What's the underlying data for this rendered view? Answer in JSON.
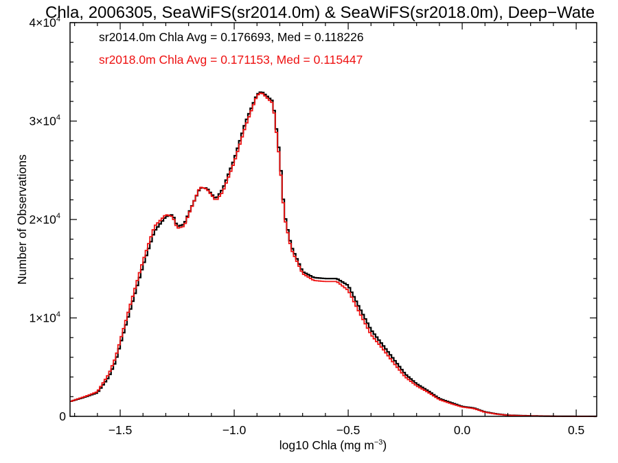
{
  "chart_data": {
    "type": "line",
    "title": "Chla, 2006305, SeaWiFS(sr2014.0m) & SeaWiFS(sr2018.0m), Deep−Wate",
    "xlabel": "log10 Chla (mg m",
    "xlabel_sup": "−3",
    "xlabel_close": ")",
    "ylabel": "Number of Observations",
    "xlim": [
      -1.72,
      0.59
    ],
    "ylim": [
      0,
      40000
    ],
    "x_ticks": [
      {
        "value": -1.5,
        "label": "−1.5"
      },
      {
        "value": -1.0,
        "label": "−1.0"
      },
      {
        "value": -0.5,
        "label": "−0.5"
      },
      {
        "value": 0.0,
        "label": "0.0"
      },
      {
        "value": 0.5,
        "label": "0.5"
      }
    ],
    "y_ticks": [
      {
        "value": 0,
        "mant": "0",
        "exp": ""
      },
      {
        "value": 10000,
        "mant": "1×10",
        "exp": "4"
      },
      {
        "value": 20000,
        "mant": "2×10",
        "exp": "4"
      },
      {
        "value": 30000,
        "mant": "3×10",
        "exp": "4"
      },
      {
        "value": 40000,
        "mant": "4×10",
        "exp": "4"
      }
    ],
    "step": "histogram",
    "legend": [
      {
        "text": "sr2014.0m Chla Avg = 0.176693, Med = 0.118226",
        "color": "#000000"
      },
      {
        "text": "sr2018.0m Chla Avg = 0.171153, Med = 0.115447",
        "color": "#ee1111"
      }
    ],
    "legend_position": "top-left",
    "series": [
      {
        "color": "#000000",
        "x": [
          -1.72,
          -1.65,
          -1.6,
          -1.55,
          -1.52,
          -1.5,
          -1.45,
          -1.4,
          -1.35,
          -1.3,
          -1.27,
          -1.25,
          -1.22,
          -1.2,
          -1.15,
          -1.12,
          -1.1,
          -1.08,
          -1.05,
          -1.0,
          -0.95,
          -0.9,
          -0.88,
          -0.85,
          -0.83,
          -0.8,
          -0.78,
          -0.75,
          -0.7,
          -0.65,
          -0.6,
          -0.55,
          -0.5,
          -0.45,
          -0.4,
          -0.35,
          -0.3,
          -0.25,
          -0.2,
          -0.15,
          -0.1,
          -0.05,
          0.0,
          0.05,
          0.1,
          0.15,
          0.2,
          0.3,
          0.4,
          0.5,
          0.59
        ],
        "y": [
          1500,
          2000,
          2400,
          4000,
          5600,
          7300,
          11300,
          15300,
          18800,
          20300,
          20500,
          19300,
          19500,
          20600,
          23200,
          23200,
          22600,
          22100,
          23100,
          26100,
          29900,
          32700,
          33000,
          32400,
          32000,
          26400,
          20600,
          17300,
          14700,
          14100,
          14000,
          14000,
          13300,
          11000,
          8800,
          7300,
          5800,
          4300,
          3300,
          2600,
          1800,
          1400,
          1000,
          850,
          450,
          250,
          120,
          50,
          15,
          5,
          2
        ]
      },
      {
        "color": "#ee1111",
        "x": [
          -1.72,
          -1.65,
          -1.6,
          -1.55,
          -1.52,
          -1.5,
          -1.45,
          -1.4,
          -1.35,
          -1.3,
          -1.27,
          -1.25,
          -1.22,
          -1.2,
          -1.15,
          -1.12,
          -1.1,
          -1.08,
          -1.05,
          -1.0,
          -0.95,
          -0.9,
          -0.88,
          -0.85,
          -0.83,
          -0.8,
          -0.78,
          -0.75,
          -0.7,
          -0.65,
          -0.6,
          -0.55,
          -0.5,
          -0.45,
          -0.4,
          -0.35,
          -0.3,
          -0.25,
          -0.2,
          -0.15,
          -0.1,
          -0.05,
          0.0,
          0.05,
          0.1,
          0.15,
          0.2,
          0.3,
          0.4,
          0.5,
          0.59
        ],
        "y": [
          1500,
          2050,
          2500,
          4300,
          6000,
          7700,
          11800,
          15800,
          19300,
          20500,
          20300,
          19100,
          19300,
          20500,
          23300,
          23100,
          22500,
          21900,
          22800,
          25800,
          29500,
          32600,
          32900,
          32200,
          31800,
          25900,
          20300,
          17000,
          14500,
          13800,
          13700,
          13700,
          12800,
          10500,
          8300,
          6900,
          5400,
          4000,
          3100,
          2450,
          1700,
          1300,
          950,
          800,
          420,
          230,
          110,
          45,
          12,
          4,
          1
        ]
      }
    ]
  }
}
